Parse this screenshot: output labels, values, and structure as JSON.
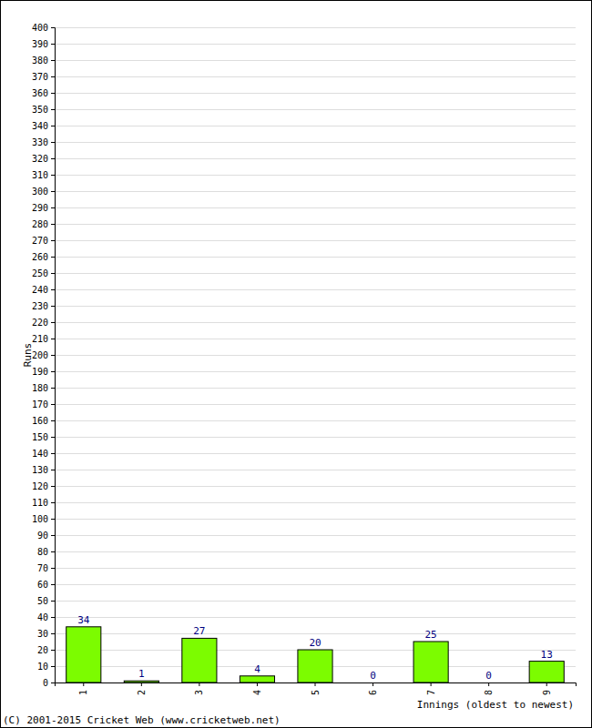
{
  "chart_data": {
    "type": "bar",
    "y_label": "Runs",
    "x_label": "Innings (oldest to newest)",
    "annotations": [
      "(C) 2001-2015 Cricket Web (www.cricketweb.net)"
    ],
    "categories": [
      "1",
      "2",
      "3",
      "4",
      "5",
      "6",
      "7",
      "8",
      "9"
    ],
    "values": [
      34,
      1,
      27,
      4,
      20,
      0,
      25,
      0,
      13
    ],
    "color": "#7cfc00",
    "ylim": [
      0,
      400
    ],
    "yticks": [
      0,
      10,
      20,
      30,
      40,
      50,
      60,
      70,
      80,
      90,
      100,
      110,
      120,
      130,
      140,
      150,
      160,
      170,
      180,
      190,
      200,
      210,
      220,
      230,
      240,
      250,
      260,
      270,
      280,
      290,
      300,
      310,
      320,
      330,
      340,
      350,
      360,
      370,
      380,
      390,
      400
    ],
    "grid": true,
    "data_labels": true
  }
}
